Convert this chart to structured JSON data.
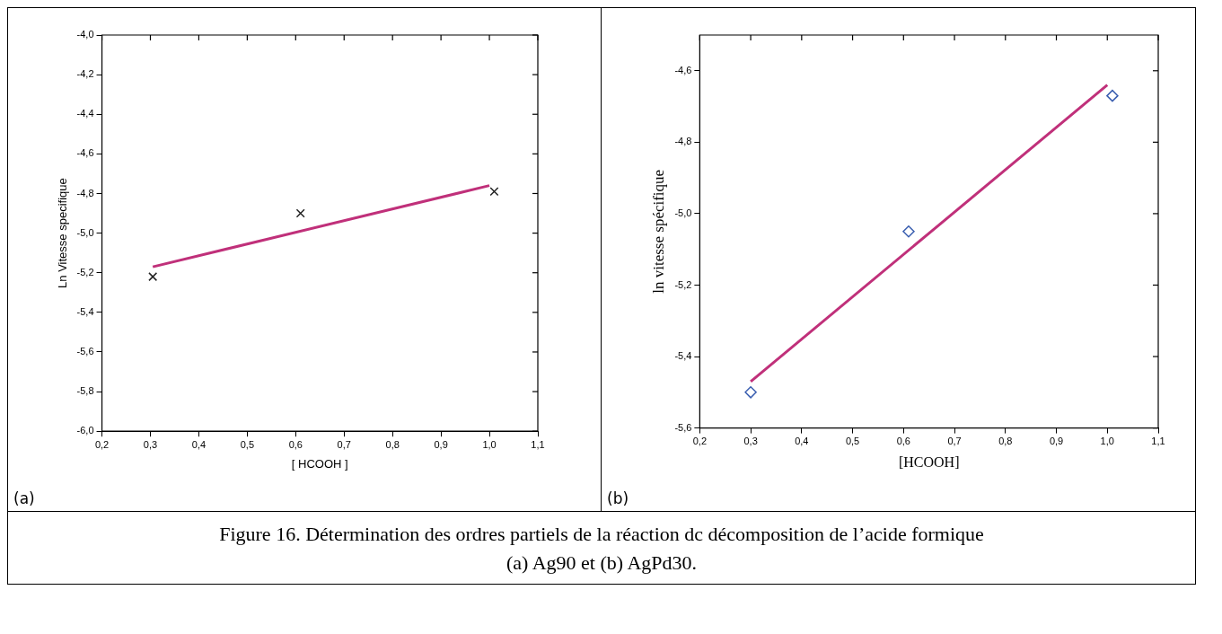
{
  "chart_data": [
    {
      "type": "scatter",
      "xlabel": "[ HCOOH ]",
      "ylabel": "Ln Vitesse specifique",
      "annotations": [
        "(a)"
      ],
      "xlim": [
        0.2,
        1.1
      ],
      "xticks": [
        {
          "value": 0.2,
          "label": "0,2"
        },
        {
          "value": 0.3,
          "label": "0,3"
        },
        {
          "value": 0.4,
          "label": "0,4"
        },
        {
          "value": 0.5,
          "label": "0,5"
        },
        {
          "value": 0.6,
          "label": "0,6"
        },
        {
          "value": 0.7,
          "label": "0,7"
        },
        {
          "value": 0.8,
          "label": "0,8"
        },
        {
          "value": 0.9,
          "label": "0,9"
        },
        {
          "value": 1.0,
          "label": "1,0"
        },
        {
          "value": 1.1,
          "label": "1,1"
        }
      ],
      "ylim": [
        -6.0,
        -4.0
      ],
      "yticks": [
        {
          "value": -6.0,
          "label": "-6,0"
        },
        {
          "value": -5.8,
          "label": "-5,8"
        },
        {
          "value": -5.6,
          "label": "-5,6"
        },
        {
          "value": -5.4,
          "label": "-5,4"
        },
        {
          "value": -5.2,
          "label": "-5,2"
        },
        {
          "value": -5.0,
          "label": "-5,0"
        },
        {
          "value": -4.8,
          "label": "-4,8"
        },
        {
          "value": -4.6,
          "label": "-4,6"
        },
        {
          "value": -4.4,
          "label": "-4,4"
        },
        {
          "value": -4.2,
          "label": "-4,2"
        },
        {
          "value": -4.0,
          "label": "-4,0"
        }
      ],
      "grid": false,
      "legend": false,
      "series": [
        {
          "type": "scatter",
          "color": "#222222",
          "marker": "cross",
          "x": [
            0.305,
            0.61,
            1.01
          ],
          "values": [
            -5.22,
            -4.9,
            -4.79
          ]
        },
        {
          "type": "line",
          "color": "#c0307a",
          "marker": "none",
          "line_style": "solid",
          "x": [
            0.305,
            1.0
          ],
          "values": [
            -5.17,
            -4.76
          ]
        }
      ]
    },
    {
      "type": "scatter",
      "xlabel": "[HCOOH]",
      "ylabel": "ln vitesse spécifique",
      "annotations": [
        "(b)",
        "Figure 16. Détermination des ordres partiels de la réaction dc décomposition de l’acide formique",
        "(a) Ag90 et (b) AgPd30."
      ],
      "xlim": [
        0.2,
        1.1
      ],
      "xticks": [
        {
          "value": 0.2,
          "label": "0,2"
        },
        {
          "value": 0.3,
          "label": "0,3"
        },
        {
          "value": 0.4,
          "label": "0,4"
        },
        {
          "value": 0.5,
          "label": "0,5"
        },
        {
          "value": 0.6,
          "label": "0,6"
        },
        {
          "value": 0.7,
          "label": "0,7"
        },
        {
          "value": 0.8,
          "label": "0,8"
        },
        {
          "value": 0.9,
          "label": "0,9"
        },
        {
          "value": 1.0,
          "label": "1,0"
        },
        {
          "value": 1.1,
          "label": "1,1"
        }
      ],
      "ylim": [
        -5.6,
        -4.5
      ],
      "yticks": [
        {
          "value": -5.6,
          "label": "-5,6"
        },
        {
          "value": -5.4,
          "label": "-5,4"
        },
        {
          "value": -5.2,
          "label": "-5,2"
        },
        {
          "value": -5.0,
          "label": "-5,0"
        },
        {
          "value": -4.8,
          "label": "-4,8"
        },
        {
          "value": -4.6,
          "label": "-4,6"
        }
      ],
      "grid": false,
      "legend": false,
      "series": [
        {
          "type": "scatter",
          "color": "#3b5fb0",
          "marker": "diamond",
          "x": [
            0.3,
            0.61,
            1.01
          ],
          "values": [
            -5.5,
            -5.05,
            -4.67
          ]
        },
        {
          "type": "line",
          "color": "#c0307a",
          "marker": "none",
          "line_style": "solid",
          "x": [
            0.3,
            1.0
          ],
          "values": [
            -5.47,
            -4.64
          ]
        }
      ]
    }
  ]
}
